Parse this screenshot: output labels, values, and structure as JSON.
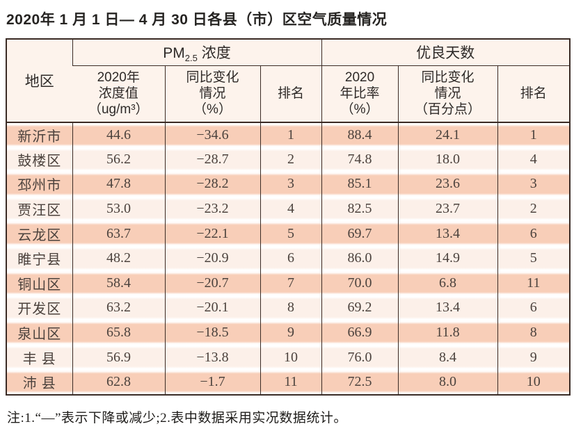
{
  "title": "2020年 1 月 1 日— 4 月 30 日各县（市）区空气质量情况",
  "table": {
    "corner_header": "地区",
    "groups": {
      "pm25": {
        "prefix": "PM",
        "sub": "2.5",
        "suffix": " 浓度"
      },
      "good_days": {
        "label": "优良天数"
      }
    },
    "sub_headers": [
      "2020年\n浓度值\n（ug/m³）",
      "同比变化\n情况\n（%）",
      "排名",
      "2020\n年比率\n（%）",
      "同比变化\n情况\n（百分点）",
      "排名"
    ],
    "rows": [
      [
        "新沂市",
        "44.6",
        "−34.6",
        "1",
        "88.4",
        "24.1",
        "1"
      ],
      [
        "鼓楼区",
        "56.2",
        "−28.7",
        "2",
        "74.8",
        "18.0",
        "4"
      ],
      [
        "邳州市",
        "47.8",
        "−28.2",
        "3",
        "85.1",
        "23.6",
        "3"
      ],
      [
        "贾汪区",
        "53.0",
        "−23.2",
        "4",
        "82.5",
        "23.7",
        "2"
      ],
      [
        "云龙区",
        "63.7",
        "−22.1",
        "5",
        "69.7",
        "13.4",
        "6"
      ],
      [
        "睢宁县",
        "48.2",
        "−20.9",
        "6",
        "86.0",
        "14.9",
        "5"
      ],
      [
        "铜山区",
        "58.4",
        "−20.7",
        "7",
        "70.0",
        "6.8",
        "11"
      ],
      [
        "开发区",
        "63.2",
        "−20.1",
        "8",
        "69.2",
        "13.4",
        "6"
      ],
      [
        "泉山区",
        "65.8",
        "−18.5",
        "9",
        "66.9",
        "11.8",
        "8"
      ],
      [
        "丰 县",
        "56.9",
        "−13.8",
        "10",
        "76.0",
        "8.4",
        "9"
      ],
      [
        "沛 县",
        "62.8",
        "−1.7",
        "11",
        "72.5",
        "8.0",
        "10"
      ]
    ]
  },
  "footnote": "注:1.“—”表示下降或减少;2.表中数据采用实况数据统计。",
  "colors": {
    "border": "#3a2b25",
    "stripe_odd": "#f8ceb8",
    "stripe_even": "#fcf0e9",
    "header_bg": "#fdf3ec"
  }
}
